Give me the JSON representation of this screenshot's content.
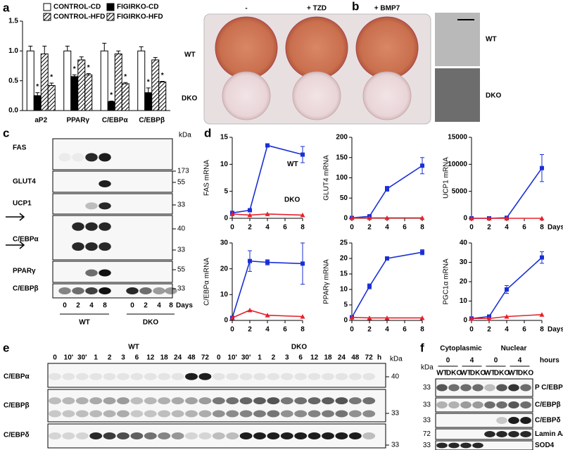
{
  "panel_labels": [
    "a",
    "b",
    "c",
    "d",
    "e",
    "f"
  ],
  "chart_data": [
    {
      "type": "bar",
      "categories": [
        "aP2",
        "PPARγ",
        "C/EBPα",
        "C/EBPβ"
      ],
      "series": [
        {
          "name": "CONTROL-CD",
          "color": "#ffffff",
          "values": [
            1,
            1,
            1,
            1
          ],
          "errors": [
            0.08,
            0.08,
            0.13,
            0.07
          ]
        },
        {
          "name": "FIGIRKO-CD",
          "color": "#000000",
          "values": [
            0.25,
            0.57,
            0.15,
            0.3
          ],
          "errors": [
            0.05,
            0.03,
            0.01,
            0.08
          ],
          "annotations": [
            "*",
            "*",
            "*",
            "*"
          ]
        },
        {
          "name": "CONTROL-HFD",
          "color": "#ffffff",
          "hatch": true,
          "values": [
            0.95,
            0.85,
            0.95,
            0.85
          ],
          "errors": [
            0.13,
            0.05,
            0.05,
            0.04
          ]
        },
        {
          "name": "FIGIRKO-HFD",
          "color": "#ffffff",
          "hatch": true,
          "values": [
            0.42,
            0.6,
            0.45,
            0.48
          ],
          "errors": [
            0.04,
            0.02,
            0.02,
            0.01
          ],
          "annotations": [
            "*",
            "*",
            "*",
            "*"
          ]
        }
      ],
      "ylim": [
        0,
        1.5
      ],
      "yticks": [
        {
          "value": 0,
          "label": "0.0"
        },
        0.5,
        {
          "value": 1,
          "label": "1.0"
        },
        1.5
      ]
    },
    {
      "type": "line",
      "y_label": "FAS mRNA",
      "x": [
        0,
        2,
        4,
        8
      ],
      "xlim": [
        0,
        8
      ],
      "xticks": [
        0,
        2,
        4,
        6,
        8
      ],
      "ylim": [
        0,
        15
      ],
      "yticks": [
        0,
        5,
        10,
        15
      ],
      "series": [
        {
          "name": "WT",
          "color": "#1a2fd6",
          "values": [
            1,
            1.5,
            13.5,
            11.8
          ],
          "errors": [
            0,
            0,
            0.3,
            1.5
          ]
        },
        {
          "name": "DKO",
          "color": "#e8202a",
          "values": [
            0.8,
            0.6,
            0.8,
            0.6
          ]
        }
      ]
    },
    {
      "type": "line",
      "y_label": "GLUT4 mRNA",
      "x": [
        0,
        2,
        4,
        8
      ],
      "xlim": [
        0,
        8
      ],
      "xticks": [
        0,
        2,
        4,
        6,
        8
      ],
      "ylim": [
        0,
        200
      ],
      "yticks": [
        0,
        50,
        100,
        150,
        200
      ],
      "series": [
        {
          "color": "#1a2fd6",
          "values": [
            1,
            5,
            73,
            130
          ],
          "errors": [
            0,
            2,
            6,
            20
          ]
        },
        {
          "color": "#e8202a",
          "values": [
            1,
            1,
            1,
            1
          ]
        }
      ]
    },
    {
      "type": "line",
      "y_label": "UCP1 mRNA",
      "x_label": "Days",
      "x": [
        0,
        2,
        4,
        8
      ],
      "xlim": [
        0,
        8
      ],
      "xticks": [
        0,
        2,
        4,
        6,
        8
      ],
      "ylim": [
        0,
        15000
      ],
      "yticks": [
        0,
        5000,
        10000,
        15000
      ],
      "series": [
        {
          "color": "#1a2fd6",
          "values": [
            0,
            0,
            100,
            9300
          ],
          "errors": [
            0,
            0,
            0,
            2500
          ]
        },
        {
          "color": "#e8202a",
          "values": [
            0,
            0,
            0,
            0
          ]
        }
      ]
    },
    {
      "type": "line",
      "y_label": "C/EBPα mRNA",
      "x": [
        0,
        2,
        4,
        8
      ],
      "xlim": [
        0,
        8
      ],
      "xticks": [
        0,
        2,
        4,
        6,
        8
      ],
      "ylim": [
        0,
        30
      ],
      "yticks": [
        0,
        10,
        20,
        30
      ],
      "series": [
        {
          "color": "#1a2fd6",
          "values": [
            1,
            23,
            22.5,
            22
          ],
          "errors": [
            0,
            4,
            1,
            8
          ]
        },
        {
          "color": "#e8202a",
          "values": [
            1,
            4,
            2,
            1.5
          ]
        }
      ]
    },
    {
      "type": "line",
      "y_label": "PPARγ mRNA",
      "x": [
        0,
        2,
        4,
        8
      ],
      "xlim": [
        0,
        8
      ],
      "xticks": [
        0,
        2,
        4,
        6,
        8
      ],
      "ylim": [
        0,
        25
      ],
      "yticks": [
        0,
        5,
        10,
        15,
        20,
        25
      ],
      "series": [
        {
          "color": "#1a2fd6",
          "values": [
            1,
            11,
            20,
            22
          ],
          "errors": [
            0,
            0.8,
            0.5,
            0.8
          ]
        },
        {
          "color": "#e8202a",
          "values": [
            1,
            0.8,
            0.8,
            0.8
          ]
        }
      ]
    },
    {
      "type": "line",
      "y_label": "PGC1α mRNA",
      "x_label": "Days",
      "x": [
        0,
        2,
        4,
        8
      ],
      "xlim": [
        0,
        8
      ],
      "xticks": [
        0,
        2,
        4,
        6,
        8
      ],
      "ylim": [
        0,
        40
      ],
      "yticks": [
        0,
        10,
        20,
        30,
        40
      ],
      "series": [
        {
          "color": "#1a2fd6",
          "values": [
            1,
            2,
            16,
            32.5
          ],
          "errors": [
            0,
            0,
            2,
            3
          ]
        },
        {
          "color": "#e8202a",
          "values": [
            1,
            1,
            2,
            3
          ]
        }
      ]
    }
  ],
  "panel_b": {
    "columns": [
      "-",
      "+ TZD",
      "+ BMP7"
    ],
    "rows": [
      "WT",
      "DKO"
    ],
    "micrograph_labels": [
      "WT",
      "DKO"
    ]
  },
  "panel_c": {
    "proteins": [
      "FAS",
      "GLUT4",
      "UCP1",
      "C/EBPα",
      "PPARγ",
      "C/EBPβ"
    ],
    "kda_label": "kDa",
    "markers": [
      173,
      55,
      33,
      40,
      33,
      55,
      33
    ],
    "days": [
      "0",
      "2",
      "4",
      "8"
    ],
    "days_label": "Days",
    "groups": [
      "WT",
      "DKO"
    ]
  },
  "panel_e": {
    "groups": [
      "WT",
      "DKO"
    ],
    "time_points": [
      "0",
      "10'",
      "30'",
      "1",
      "2",
      "3",
      "6",
      "12",
      "18",
      "24",
      "48",
      "72"
    ],
    "time_unit": "h",
    "proteins": [
      "C/EBPα",
      "C/EBPβ",
      "C/EBPδ"
    ],
    "kda_label": "kDa",
    "markers": [
      40,
      33,
      33
    ]
  },
  "panel_f": {
    "fractions": [
      "Cytoplasmic",
      "Nuclear"
    ],
    "hours": [
      0,
      4,
      0,
      4
    ],
    "hours_label": "hours",
    "genotypes": [
      "WT",
      "DKO"
    ],
    "proteins": [
      "P C/EBPβ",
      "C/EBPβ",
      "C/EBPδ",
      "Lamin A/C",
      "SOD4"
    ],
    "kda_label": "kDa",
    "markers": [
      33,
      33,
      33,
      72,
      33
    ]
  }
}
